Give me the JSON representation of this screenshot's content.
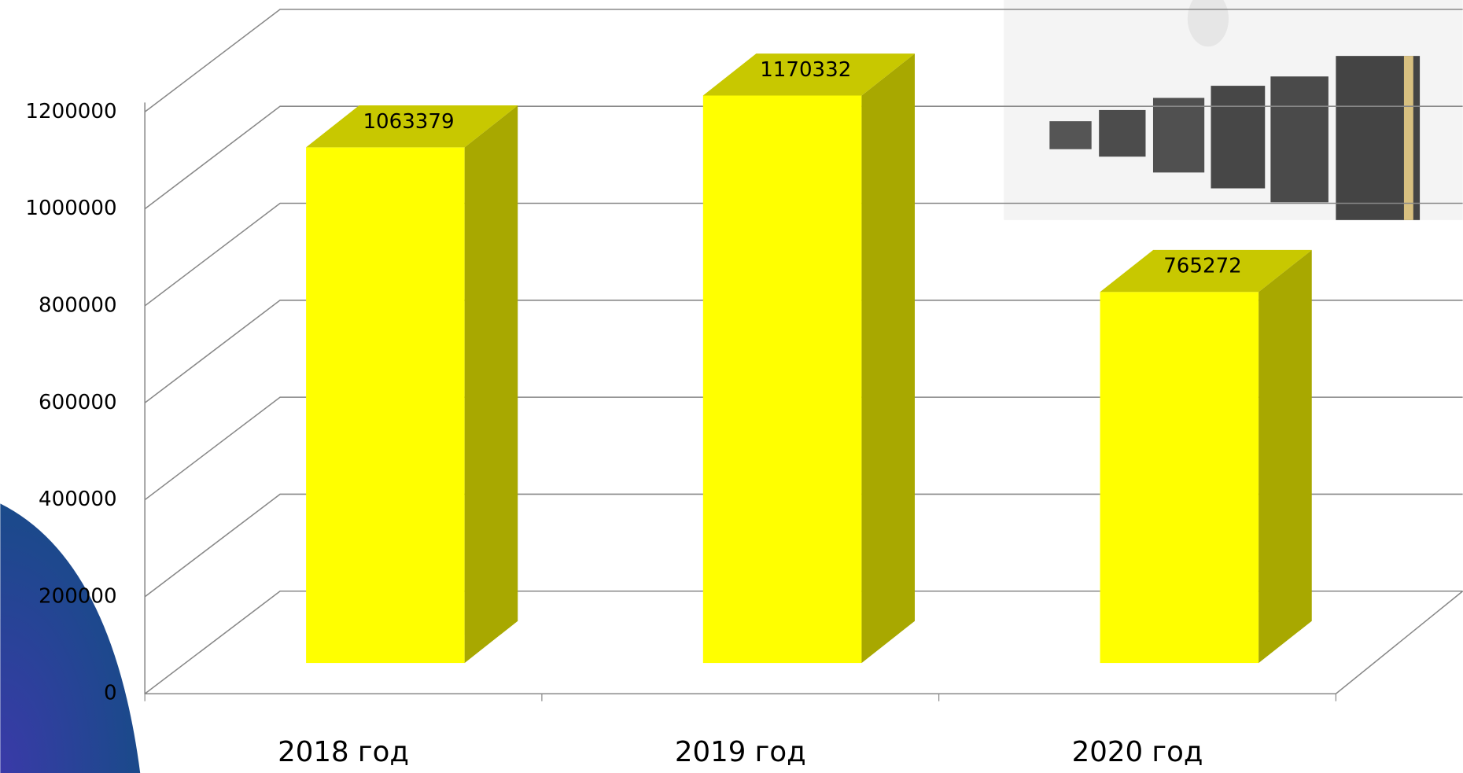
{
  "chart_data": {
    "type": "bar3d",
    "categories": [
      "2018 год",
      "2019 год",
      "2020 год"
    ],
    "values": [
      1063379,
      1170332,
      765272
    ],
    "color": "#ffff00",
    "side_color": "#a8a800",
    "top_color": "#c8c800",
    "ylim": [
      0,
      1200000
    ],
    "yticks": [
      0,
      200000,
      400000,
      600000,
      800000,
      1000000,
      1200000
    ],
    "grid": true
  }
}
